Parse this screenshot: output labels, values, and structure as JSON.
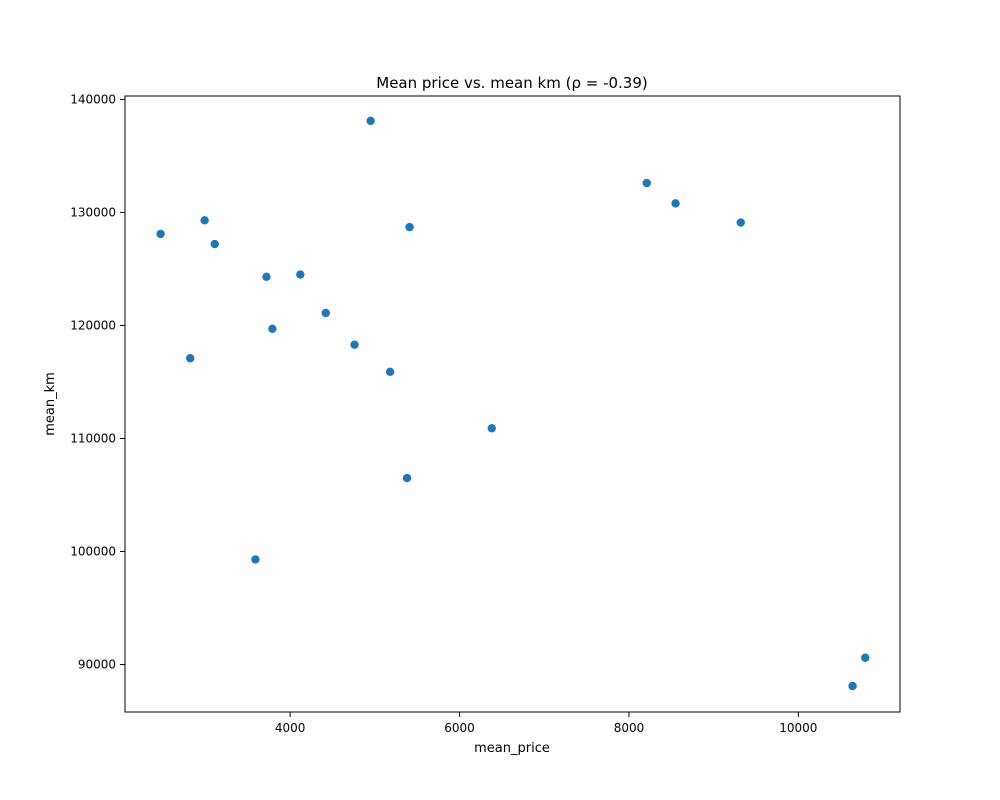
{
  "chart_data": {
    "type": "scatter",
    "title": "Mean price vs. mean km (ρ = -0.39)",
    "xlabel": "mean_price",
    "ylabel": "mean_km",
    "xlim": [
      2050,
      11200
    ],
    "ylim": [
      85800,
      140300
    ],
    "xticks": [
      {
        "value": 4000,
        "label": "4000"
      },
      {
        "value": 6000,
        "label": "6000"
      },
      {
        "value": 8000,
        "label": "8000"
      },
      {
        "value": 10000,
        "label": "10000"
      }
    ],
    "yticks": [
      {
        "value": 90000,
        "label": "90000"
      },
      {
        "value": 100000,
        "label": "100000"
      },
      {
        "value": 110000,
        "label": "110000"
      },
      {
        "value": 120000,
        "label": "120000"
      },
      {
        "value": 130000,
        "label": "130000"
      },
      {
        "value": 140000,
        "label": "140000"
      }
    ],
    "grid": false,
    "legend": "none",
    "marker_color": "#1f77b4",
    "series": [
      {
        "points": [
          {
            "x": 2470,
            "y": 128100
          },
          {
            "x": 2820,
            "y": 117100
          },
          {
            "x": 2990,
            "y": 129300
          },
          {
            "x": 3110,
            "y": 127200
          },
          {
            "x": 3590,
            "y": 99300
          },
          {
            "x": 3720,
            "y": 124300
          },
          {
            "x": 3790,
            "y": 119700
          },
          {
            "x": 4120,
            "y": 124500
          },
          {
            "x": 4420,
            "y": 121100
          },
          {
            "x": 4760,
            "y": 118300
          },
          {
            "x": 4950,
            "y": 138100
          },
          {
            "x": 5180,
            "y": 115900
          },
          {
            "x": 5380,
            "y": 106500
          },
          {
            "x": 5410,
            "y": 128700
          },
          {
            "x": 6380,
            "y": 110900
          },
          {
            "x": 8210,
            "y": 132600
          },
          {
            "x": 8550,
            "y": 130800
          },
          {
            "x": 9320,
            "y": 129100
          },
          {
            "x": 10640,
            "y": 88100
          },
          {
            "x": 10790,
            "y": 90600
          }
        ]
      }
    ]
  }
}
